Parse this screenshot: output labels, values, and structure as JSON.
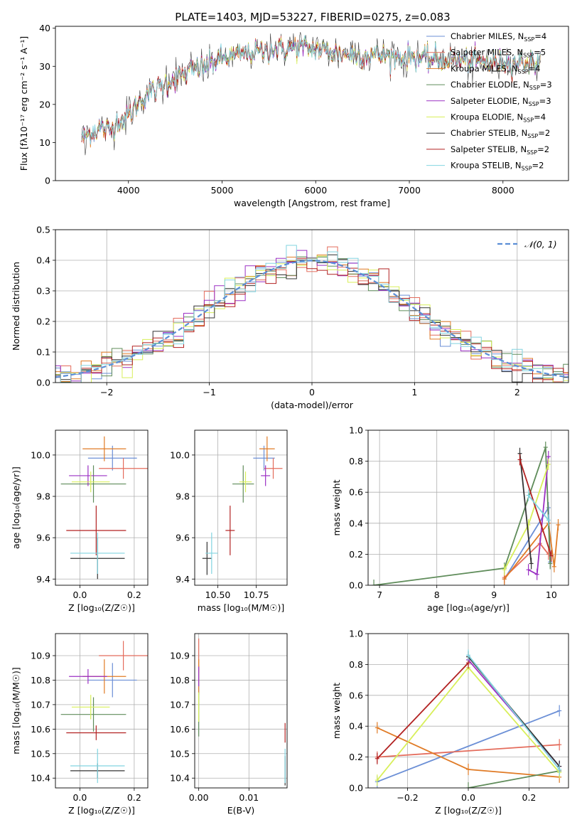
{
  "figure": {
    "title": "PLATE=1403, MJD=53227, FIBERID=0275, z=0.083"
  },
  "models": [
    {
      "name": "Chabrier MILES",
      "nssp": "4",
      "color": "#6b8fd6"
    },
    {
      "name": "Salpeter MILES",
      "nssp": "5",
      "color": "#e46c5c"
    },
    {
      "name": "Kroupa MILES",
      "nssp": "4",
      "color": "#e07b26"
    },
    {
      "name": "Chabrier ELODIE",
      "nssp": "3",
      "color": "#5f8c5a"
    },
    {
      "name": "Salpeter ELODIE",
      "nssp": "3",
      "color": "#9b30c4"
    },
    {
      "name": "Kroupa ELODIE",
      "nssp": "4",
      "color": "#d8ef5a"
    },
    {
      "name": "Chabrier STELIB",
      "nssp": "2",
      "color": "#333333"
    },
    {
      "name": "Salpeter STELIB",
      "nssp": "2",
      "color": "#b22222"
    },
    {
      "name": "Kroupa STELIB",
      "nssp": "2",
      "color": "#82d4e0"
    }
  ],
  "chart_data": [
    {
      "id": "spectrum",
      "type": "line",
      "xlabel": "wavelength [Angstrom, rest frame]",
      "ylabel": "Flux [fλ10⁻¹⁷ erg cm⁻² s⁻¹ A⁻¹]",
      "xlim": [
        3220,
        8700
      ],
      "ylim": [
        0,
        40.5
      ],
      "xticks": [
        4000,
        5000,
        6000,
        7000,
        8000
      ],
      "yticks": [
        0,
        10,
        20,
        30,
        40
      ],
      "legend": "top-right",
      "continuum": {
        "x": [
          3500,
          3600,
          3700,
          3800,
          3900,
          4000,
          4100,
          4200,
          4300,
          4400,
          4500,
          4600,
          4800,
          5000,
          5200,
          5400,
          5600,
          5800,
          6000,
          6200,
          6400,
          6600,
          6800,
          7000,
          7200,
          7400,
          7600,
          7800,
          8000,
          8200,
          8400
        ],
        "y": [
          11,
          12.5,
          14,
          13,
          16,
          17,
          20,
          23,
          24,
          25.5,
          27,
          28,
          30,
          32,
          33,
          34,
          34.5,
          35,
          34.5,
          33.5,
          33,
          33,
          32.5,
          32.5,
          32,
          32,
          31.5,
          31,
          31,
          31,
          31
        ]
      },
      "range": [
        3500,
        8400
      ]
    },
    {
      "id": "residuals",
      "type": "histogram",
      "xlabel": "(data-model)/error",
      "ylabel": "Normed distribution",
      "xlim": [
        -2.5,
        2.5
      ],
      "ylim": [
        0,
        0.5
      ],
      "xticks": [
        -2,
        -1,
        0,
        1,
        2
      ],
      "yticks": [
        0.0,
        0.1,
        0.2,
        0.3,
        0.4,
        0.5
      ],
      "grid": true,
      "legend": "top-right",
      "curve_label": "𝒩(0, 1)",
      "curve_color": "#5b8ed6",
      "bin_width": 0.1
    },
    {
      "id": "age_vs_Z",
      "type": "scatter",
      "xlabel": "Z [log₁₀(Z/Z☉)]",
      "ylabel": "age  [log₁₀(age/yr)]",
      "xlim": [
        -0.09,
        0.25
      ],
      "ylim": [
        9.37,
        10.12
      ],
      "xticks": [
        0.0,
        0.2
      ],
      "yticks": [
        9.4,
        9.6,
        9.8,
        10.0
      ],
      "grid": true,
      "points": [
        {
          "m": 0,
          "x": 0.12,
          "y": 9.985,
          "ex": 0.09,
          "ey": 0.06
        },
        {
          "m": 1,
          "x": 0.16,
          "y": 9.935,
          "ex": 0.09,
          "ey": 0.05
        },
        {
          "m": 2,
          "x": 0.09,
          "y": 10.03,
          "ex": 0.08,
          "ey": 0.06
        },
        {
          "m": 3,
          "x": 0.05,
          "y": 9.86,
          "ex": 0.12,
          "ey": 0.09
        },
        {
          "m": 4,
          "x": 0.03,
          "y": 9.9,
          "ex": 0.07,
          "ey": 0.05
        },
        {
          "m": 5,
          "x": 0.04,
          "y": 9.87,
          "ex": 0.07,
          "ey": 0.05
        },
        {
          "m": 6,
          "x": 0.065,
          "y": 9.5,
          "ex": 0.1,
          "ey": 0.1
        },
        {
          "m": 7,
          "x": 0.06,
          "y": 9.635,
          "ex": 0.11,
          "ey": 0.12
        },
        {
          "m": 8,
          "x": 0.065,
          "y": 9.525,
          "ex": 0.1,
          "ey": 0.1
        }
      ]
    },
    {
      "id": "age_vs_mass",
      "type": "scatter",
      "xlabel": "mass [log₁₀(M/M☉)]",
      "ylabel": "",
      "xlim": [
        10.35,
        10.95
      ],
      "ylim": [
        9.37,
        10.12
      ],
      "xticks": [
        10.5,
        10.75
      ],
      "xticklabels": [
        "10.50",
        "10.75"
      ],
      "yticks": [
        9.4,
        9.6,
        9.8,
        10.0
      ],
      "grid": true,
      "points": [
        {
          "m": 0,
          "x": 10.8,
          "y": 9.985,
          "ex": 0.07,
          "ey": 0.06
        },
        {
          "m": 1,
          "x": 10.86,
          "y": 9.935,
          "ex": 0.06,
          "ey": 0.05
        },
        {
          "m": 2,
          "x": 10.82,
          "y": 10.03,
          "ex": 0.05,
          "ey": 0.06
        },
        {
          "m": 3,
          "x": 10.665,
          "y": 9.86,
          "ex": 0.07,
          "ey": 0.09
        },
        {
          "m": 4,
          "x": 10.81,
          "y": 9.9,
          "ex": 0.03,
          "ey": 0.05
        },
        {
          "m": 5,
          "x": 10.68,
          "y": 9.87,
          "ex": 0.04,
          "ey": 0.05
        },
        {
          "m": 6,
          "x": 10.43,
          "y": 9.5,
          "ex": 0.03,
          "ey": 0.08
        },
        {
          "m": 7,
          "x": 10.58,
          "y": 9.635,
          "ex": 0.03,
          "ey": 0.12
        },
        {
          "m": 8,
          "x": 10.46,
          "y": 9.525,
          "ex": 0.04,
          "ey": 0.1
        }
      ]
    },
    {
      "id": "weight_vs_age",
      "type": "line",
      "xlabel": "age  [log₁₀(age/yr)]",
      "ylabel": "mass weight",
      "xlim": [
        6.8,
        10.3
      ],
      "ylim": [
        0,
        1.0
      ],
      "xticks": [
        7,
        8,
        9,
        10
      ],
      "yticks": [
        0.0,
        0.2,
        0.4,
        0.6,
        0.8,
        1.0
      ],
      "grid": true,
      "series": [
        {
          "m": 0,
          "x": [
            9.18,
            9.95,
            9.98
          ],
          "y": [
            0.04,
            0.5,
            0.15
          ]
        },
        {
          "m": 1,
          "x": [
            9.18,
            9.8,
            9.95
          ],
          "y": [
            0.05,
            0.27,
            0.2
          ]
        },
        {
          "m": 2,
          "x": [
            9.18,
            9.95,
            10.05,
            10.12
          ],
          "y": [
            0.04,
            0.4,
            0.12,
            0.39
          ]
        },
        {
          "m": 3,
          "x": [
            6.9,
            9.18,
            9.9,
            9.98
          ],
          "y": [
            0.0,
            0.11,
            0.89,
            0.14
          ]
        },
        {
          "m": 4,
          "x": [
            9.6,
            9.75,
            9.95
          ],
          "y": [
            0.1,
            0.07,
            0.83
          ]
        },
        {
          "m": 5,
          "x": [
            9.18,
            9.6,
            9.95
          ],
          "y": [
            0.1,
            0.39,
            0.78
          ]
        },
        {
          "m": 6,
          "x": [
            9.45,
            9.65
          ],
          "y": [
            0.85,
            0.14
          ]
        },
        {
          "m": 7,
          "x": [
            9.45,
            10.0
          ],
          "y": [
            0.81,
            0.19
          ]
        },
        {
          "m": 8,
          "x": [
            9.6,
            9.95
          ],
          "y": [
            0.58,
            0.42
          ]
        }
      ]
    },
    {
      "id": "mass_vs_Z",
      "type": "scatter",
      "xlabel": "Z [log₁₀(Z/Z☉)]",
      "ylabel": "mass [log₁₀(M/M☉)]",
      "xlim": [
        -0.09,
        0.25
      ],
      "ylim": [
        10.36,
        10.99
      ],
      "xticks": [
        0.0,
        0.2
      ],
      "yticks": [
        10.4,
        10.5,
        10.6,
        10.7,
        10.8,
        10.9
      ],
      "grid": true,
      "points": [
        {
          "m": 0,
          "x": 0.12,
          "y": 10.8,
          "ex": 0.09,
          "ey": 0.07
        },
        {
          "m": 1,
          "x": 0.16,
          "y": 10.9,
          "ex": 0.09,
          "ey": 0.06
        },
        {
          "m": 2,
          "x": 0.09,
          "y": 10.815,
          "ex": 0.08,
          "ey": 0.07
        },
        {
          "m": 3,
          "x": 0.05,
          "y": 10.66,
          "ex": 0.12,
          "ey": 0.07
        },
        {
          "m": 4,
          "x": 0.03,
          "y": 10.815,
          "ex": 0.07,
          "ey": 0.03
        },
        {
          "m": 5,
          "x": 0.04,
          "y": 10.69,
          "ex": 0.07,
          "ey": 0.05
        },
        {
          "m": 6,
          "x": 0.065,
          "y": 10.43,
          "ex": 0.1,
          "ey": 0.03
        },
        {
          "m": 7,
          "x": 0.06,
          "y": 10.585,
          "ex": 0.11,
          "ey": 0.03
        },
        {
          "m": 8,
          "x": 0.065,
          "y": 10.45,
          "ex": 0.1,
          "ey": 0.07
        }
      ]
    },
    {
      "id": "mass_vs_ebv",
      "type": "scatter",
      "xlabel": "E(B-V)",
      "ylabel": "",
      "xlim": [
        -0.0008,
        0.0176
      ],
      "ylim": [
        10.36,
        10.99
      ],
      "xticks": [
        0.0,
        0.01
      ],
      "xticklabels": [
        "0.00",
        "0.01"
      ],
      "yticks": [
        10.4,
        10.5,
        10.6,
        10.7,
        10.8,
        10.9
      ],
      "grid": true,
      "points": [
        {
          "m": 0,
          "x": 0.0,
          "y": 10.8,
          "ex": 0,
          "ey": 0.06
        },
        {
          "m": 1,
          "x": 0.0,
          "y": 10.9,
          "ex": 0,
          "ey": 0.07
        },
        {
          "m": 2,
          "x": 0.0,
          "y": 10.815,
          "ex": 0,
          "ey": 0.07
        },
        {
          "m": 3,
          "x": 0.0,
          "y": 10.66,
          "ex": 0,
          "ey": 0.09
        },
        {
          "m": 4,
          "x": 0.0,
          "y": 10.815,
          "ex": 0,
          "ey": 0.04
        },
        {
          "m": 5,
          "x": 0.0,
          "y": 10.69,
          "ex": 0,
          "ey": 0.06
        },
        {
          "m": 6,
          "x": 0.0172,
          "y": 10.43,
          "ex": 0,
          "ey": 0.06
        },
        {
          "m": 7,
          "x": 0.0172,
          "y": 10.585,
          "ex": 0,
          "ey": 0.04
        },
        {
          "m": 8,
          "x": 0.0172,
          "y": 10.45,
          "ex": 0,
          "ey": 0.07
        }
      ]
    },
    {
      "id": "weight_vs_Z",
      "type": "line",
      "xlabel": "Z [log₁₀(Z/Z☉)]",
      "ylabel": "mass weight",
      "xlim": [
        -0.33,
        0.33
      ],
      "ylim": [
        0,
        1.0
      ],
      "xticks": [
        -0.2,
        0.0,
        0.2
      ],
      "yticks": [
        0.0,
        0.2,
        0.4,
        0.6,
        0.8,
        1.0
      ],
      "grid": true,
      "series": [
        {
          "m": 0,
          "x": [
            -0.3,
            0.3
          ],
          "y": [
            0.04,
            0.5
          ]
        },
        {
          "m": 1,
          "x": [
            -0.3,
            0.3
          ],
          "y": [
            0.2,
            0.28
          ]
        },
        {
          "m": 2,
          "x": [
            -0.3,
            0.0,
            0.3
          ],
          "y": [
            0.39,
            0.12,
            0.07
          ]
        },
        {
          "m": 3,
          "x": [
            0.0,
            0.3
          ],
          "y": [
            0.0,
            0.11
          ]
        },
        {
          "m": 4,
          "x": [
            0.0,
            0.3
          ],
          "y": [
            0.83,
            0.14
          ]
        },
        {
          "m": 5,
          "x": [
            -0.3,
            0.0,
            0.3
          ],
          "y": [
            0.05,
            0.78,
            0.1
          ]
        },
        {
          "m": 6,
          "x": [
            0.0,
            0.3
          ],
          "y": [
            0.85,
            0.14
          ]
        },
        {
          "m": 7,
          "x": [
            -0.3,
            0.0
          ],
          "y": [
            0.19,
            0.81
          ]
        },
        {
          "m": 8,
          "x": [
            0.0,
            0.3
          ],
          "y": [
            0.86,
            0.12
          ]
        }
      ]
    }
  ]
}
